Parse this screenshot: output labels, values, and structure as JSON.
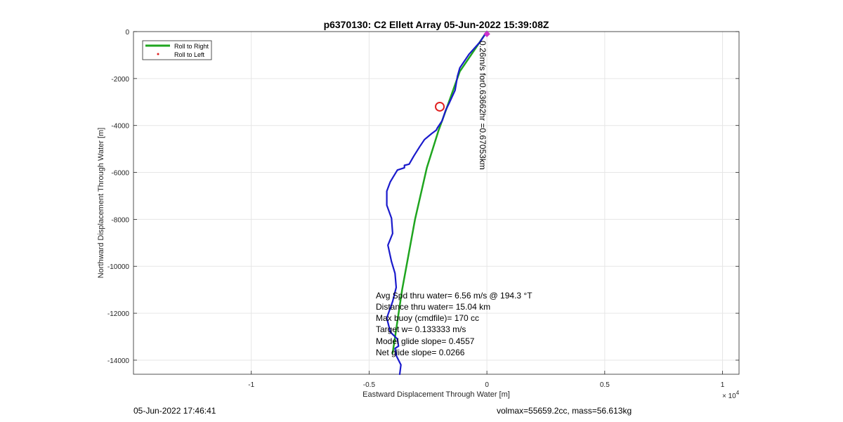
{
  "chart_data": {
    "type": "line",
    "title": "p6370130: C2 Ellett Array 05-Jun-2022 15:39:08Z",
    "xlabel": "Eastward Displacement Through Water [m]",
    "ylabel": "Northward Displacement Through Water [m]",
    "x_exponent_label": "× 10",
    "x_exponent_power": "4",
    "xlim": [
      -15000,
      10700
    ],
    "ylim": [
      -14600,
      0
    ],
    "xticks": [
      -10000,
      -5000,
      0,
      5000,
      10000
    ],
    "xtick_labels": [
      "-1",
      "-0.5",
      "0",
      "0.5",
      "1"
    ],
    "yticks": [
      0,
      -2000,
      -4000,
      -6000,
      -8000,
      -10000,
      -12000,
      -14000
    ],
    "ytick_labels": [
      "0",
      "-2000",
      "-4000",
      "-6000",
      "-8000",
      "-10000",
      "-12000",
      "-14000"
    ],
    "grid": true,
    "legend": {
      "placement": "top-left",
      "entries": [
        {
          "label": "Roll to Right",
          "color": "#1fa51f",
          "style": "line"
        },
        {
          "label": "Roll to Left",
          "color": "#e02020",
          "style": "dot"
        }
      ]
    },
    "series": [
      {
        "name": "Roll to Right",
        "color": "#1fa51f",
        "x": [
          0,
          -1150,
          -1650,
          -2050,
          -2550,
          -3050,
          -3600,
          -4000
        ],
        "y": [
          0,
          -1700,
          -3100,
          -4200,
          -5800,
          -8000,
          -11000,
          -13700
        ]
      },
      {
        "color": "#1a1acc",
        "x": [
          0,
          -300,
          -750,
          -1150,
          -1250,
          -1350,
          -1600,
          -1750,
          -1900,
          -2100,
          -2150,
          -2350,
          -2650,
          -2850,
          -3100,
          -3300,
          -3500,
          -3500,
          -3800,
          -3950,
          -4100,
          -4250,
          -4250,
          -4050,
          -4000,
          -4200,
          -4050,
          -3900,
          -3850,
          -4000,
          -4250,
          -4100,
          -3800,
          -3750,
          -3900,
          -3850,
          -3650,
          -3700
        ],
        "y": [
          0,
          -450,
          -950,
          -1550,
          -1900,
          -2500,
          -3050,
          -3350,
          -3800,
          -4100,
          -4200,
          -4350,
          -4600,
          -4900,
          -5300,
          -5650,
          -5700,
          -5800,
          -5900,
          -6150,
          -6400,
          -6800,
          -7400,
          -7950,
          -8600,
          -9100,
          -9800,
          -10300,
          -10900,
          -11500,
          -12200,
          -12800,
          -13100,
          -13400,
          -13500,
          -13800,
          -14200,
          -14600
        ]
      }
    ],
    "markers": [
      {
        "type": "circle",
        "x": -2000,
        "y": -3200,
        "color": "#e02020"
      },
      {
        "type": "diamond",
        "x": 0,
        "y": -100,
        "color": "#cc33cc"
      }
    ],
    "annotations": {
      "rotated": "0.26m/s for0.63662hr =0.67053km",
      "stats": [
        "Avg Spd thru water=  6.56 m/s @ 194.3 °T",
        "Distance thru water= 15.04 km",
        "Max buoy (cmdfile)= 170 cc",
        "Target w= 0.133333 m/s",
        "Model glide slope= 0.4557",
        "Net glide slope= 0.0266"
      ]
    }
  },
  "footer": {
    "left": "05-Jun-2022 17:46:41",
    "right": "volmax=55659.2cc, mass=56.613kg"
  }
}
